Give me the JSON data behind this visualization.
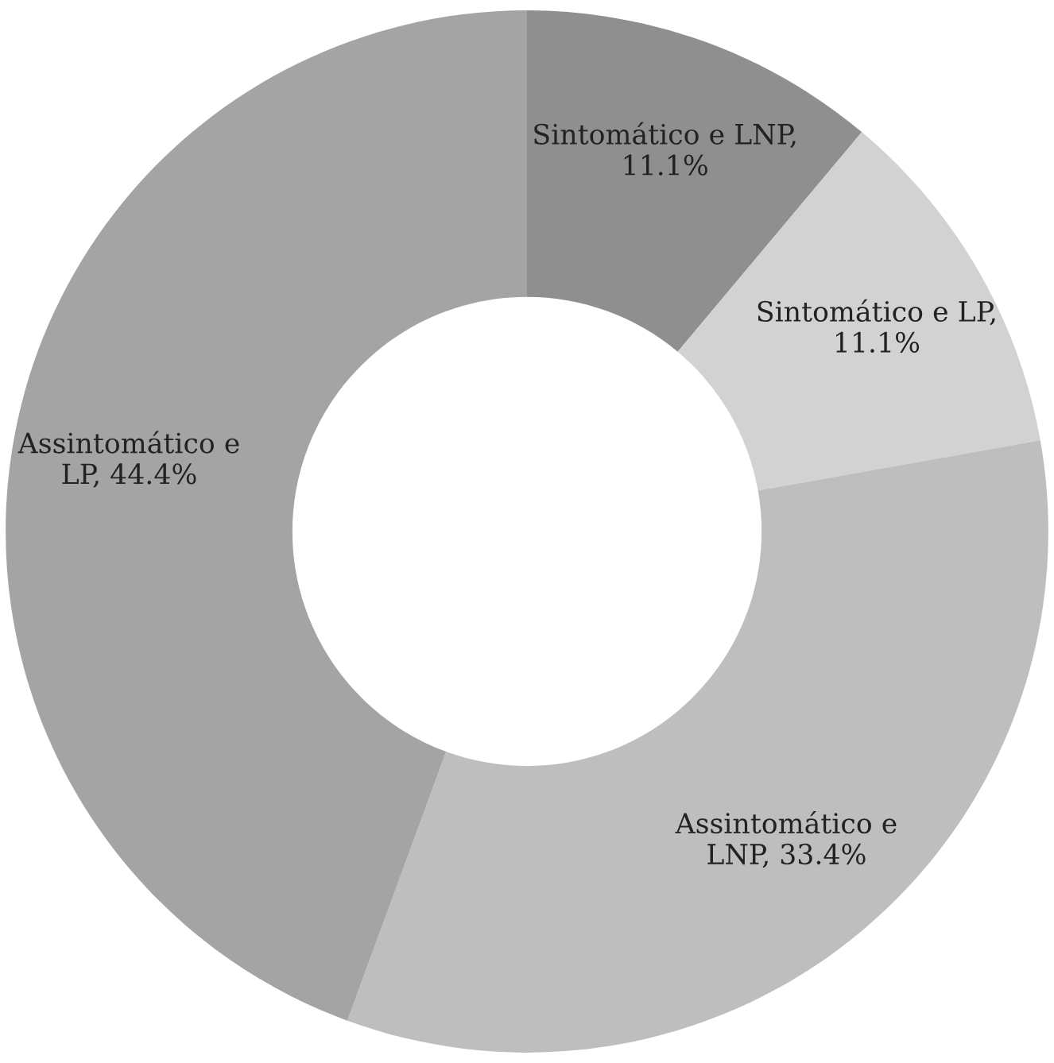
{
  "chart_data": {
    "type": "donut",
    "categories": [
      "Sintomático e LNP",
      "Sintomático e LP",
      "Assintomático e LNP",
      "Assintomático e LP"
    ],
    "values": [
      11.1,
      11.1,
      33.4,
      44.4
    ],
    "value_labels": [
      ", 11.1%",
      ", 11.1%",
      ", 33.4%",
      ", 44.4%"
    ],
    "colors": [
      "#8f8f8f",
      "#d2d2d2",
      "#bebebe",
      "#a4a4a4"
    ],
    "legend": false
  }
}
